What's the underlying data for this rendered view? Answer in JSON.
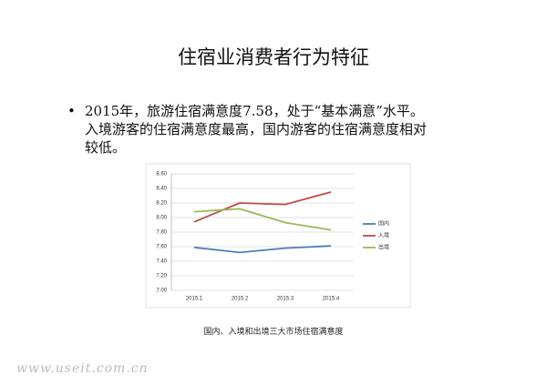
{
  "slide": {
    "title": "住宿业消费者行为特征",
    "bullet": "•",
    "bullet_lines": [
      "2015年，旅游住宿满意度7.58，处于“基本满意”水平。",
      "入境游客的住宿满意度最高，国内游客的住宿满意度相对",
      "较低。"
    ]
  },
  "chart_data": {
    "type": "line",
    "categories": [
      "2015.1",
      "2015.2",
      "2015.3",
      "2015.4"
    ],
    "series": [
      {
        "name": "国内",
        "color": "#4a7ebb",
        "values": [
          7.59,
          7.52,
          7.58,
          7.61
        ]
      },
      {
        "name": "入境",
        "color": "#be4b48",
        "values": [
          7.94,
          8.2,
          8.18,
          8.35
        ]
      },
      {
        "name": "出境",
        "color": "#98b954",
        "values": [
          8.08,
          8.12,
          7.93,
          7.83
        ]
      }
    ],
    "ylim": [
      7.0,
      8.6
    ],
    "yticks": [
      {
        "value": 7.0,
        "label": "7.00"
      },
      {
        "value": 7.2,
        "label": "7.20"
      },
      {
        "value": 7.4,
        "label": "7.40"
      },
      {
        "value": 7.6,
        "label": "7.60"
      },
      {
        "value": 7.8,
        "label": "7.80"
      },
      {
        "value": 8.0,
        "label": "8.00"
      },
      {
        "value": 8.2,
        "label": "8.20"
      },
      {
        "value": 8.4,
        "label": "8.40"
      },
      {
        "value": 8.6,
        "label": "8.60"
      }
    ],
    "grid": true,
    "legend": "right"
  },
  "caption": "国内、入境和出境三大市场住宿满意度",
  "watermark": "www.useit.com.cn"
}
